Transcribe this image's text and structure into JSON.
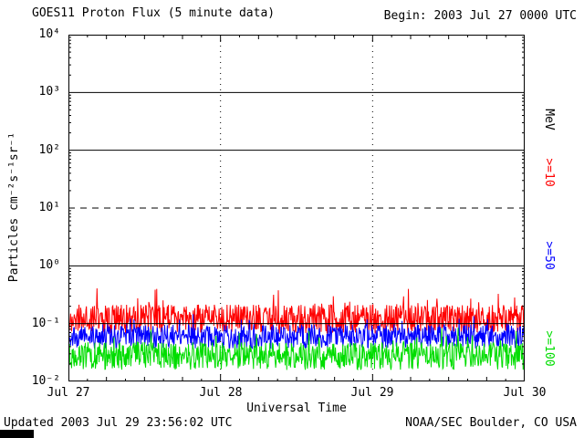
{
  "header": {
    "begin_label": "Begin: 2003 Jul 27 0000 UTC"
  },
  "footer": {
    "updated": "Updated 2003 Jul 29 23:56:02 UTC",
    "source": "NOAA/SEC Boulder, CO USA"
  },
  "chart_data": {
    "type": "line",
    "title": "GOES11 Proton Flux (5 minute data)",
    "xlabel": "Universal Time",
    "ylabel": "Particles cm⁻²s⁻¹sr⁻¹",
    "y_scale": "log10",
    "ylim_log10": [
      -2,
      4
    ],
    "y_tick_labels": [
      "10⁴",
      "10³",
      "10²",
      "10¹",
      "10⁰",
      "10⁻¹",
      "10⁻²"
    ],
    "x_tick_labels": [
      "Jul 27",
      "Jul 28",
      "Jul 29",
      "Jul 30"
    ],
    "x_range_days": 3,
    "points_per_series": 864,
    "grid": {
      "h_solid_exponents": [
        3,
        2,
        0,
        -1
      ],
      "h_dashed_exponents": [
        1
      ],
      "v_dotted_days": [
        1,
        2
      ]
    },
    "right_axis": {
      "unit_label": "MeV"
    },
    "series": [
      {
        "id": "gte10",
        "name": ">=10 MeV",
        "label": ">=10",
        "color": "#ff0000",
        "base_log10": -0.92,
        "spread_log10": 0.5,
        "spike_prob": 0.06,
        "spike_log10": 0.35,
        "seed": 20030727,
        "typical_flux": 0.12,
        "flux_range_approx": [
          0.06,
          0.5
        ]
      },
      {
        "id": "gte50",
        "name": ">=50 MeV",
        "label": ">=50",
        "color": "#0000ff",
        "base_log10": -1.22,
        "spread_log10": 0.42,
        "spike_prob": 0.05,
        "spike_log10": 0.25,
        "seed": 20030728,
        "typical_flux": 0.06,
        "flux_range_approx": [
          0.035,
          0.16
        ]
      },
      {
        "id": "gte100",
        "name": ">=100 MeV",
        "label": ">=100",
        "color": "#00dd00",
        "base_log10": -1.56,
        "spread_log10": 0.48,
        "spike_prob": 0.05,
        "spike_log10": 0.3,
        "seed": 20030729,
        "typical_flux": 0.027,
        "flux_range_approx": [
          0.014,
          0.09
        ]
      }
    ]
  }
}
